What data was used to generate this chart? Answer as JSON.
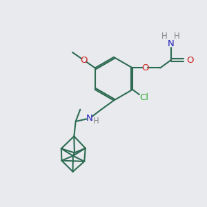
{
  "bg_color": "#e8eaed",
  "bond_color": "#2d6b52",
  "n_color": "#2020bb",
  "o_color": "#cc2020",
  "cl_color": "#33aa33",
  "h_color": "#888888",
  "line_width": 1.5,
  "font_size": 8.5,
  "fig_w": 3.0,
  "fig_h": 3.0,
  "dpi": 100,
  "xlim": [
    0,
    10
  ],
  "ylim": [
    0,
    10
  ]
}
